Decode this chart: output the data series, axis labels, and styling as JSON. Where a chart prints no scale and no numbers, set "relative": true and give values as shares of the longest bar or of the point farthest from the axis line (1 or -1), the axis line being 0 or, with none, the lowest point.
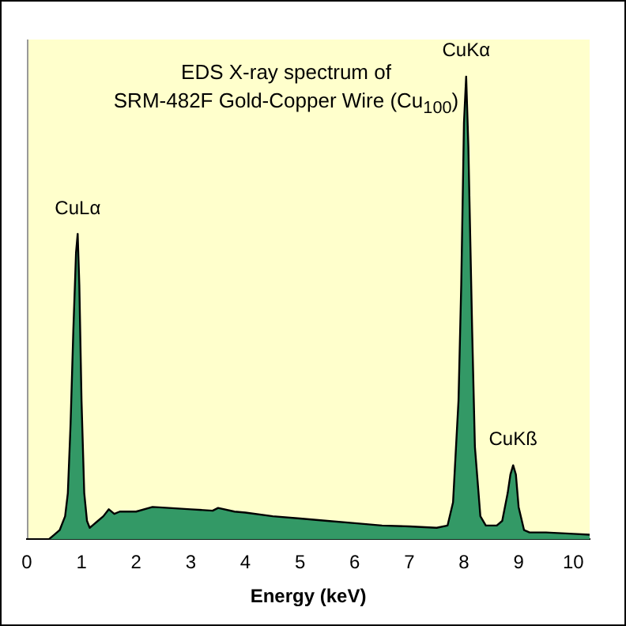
{
  "chart_data": {
    "type": "area",
    "title": "EDS X-ray spectrum of\nSRM-482F Gold-Copper Wire (Cu$_{100}$)",
    "xlabel": "Energy (keV)",
    "relative": true,
    "xlim": [
      0,
      10.3
    ],
    "xticks": [
      0,
      1,
      2,
      3,
      4,
      5,
      6,
      7,
      8,
      9,
      10
    ],
    "grid": false,
    "legend": false,
    "marker": "none",
    "x": [
      0,
      0.4,
      0.5,
      0.6,
      0.7,
      0.75,
      0.8,
      0.85,
      0.9,
      0.93,
      0.96,
      1.0,
      1.05,
      1.1,
      1.15,
      1.2,
      1.3,
      1.4,
      1.5,
      1.6,
      1.7,
      2.0,
      2.3,
      2.6,
      3.0,
      3.4,
      3.5,
      3.8,
      4.0,
      4.5,
      5.0,
      5.5,
      6.0,
      6.5,
      7.0,
      7.5,
      7.7,
      7.8,
      7.9,
      7.95,
      8.0,
      8.04,
      8.08,
      8.15,
      8.2,
      8.3,
      8.4,
      8.6,
      8.7,
      8.8,
      8.85,
      8.9,
      8.95,
      9.0,
      9.1,
      9.2,
      9.5,
      10.0,
      10.3
    ],
    "series": [
      {
        "color": "#339966",
        "values": [
          0,
          0,
          0.01,
          0.02,
          0.05,
          0.1,
          0.25,
          0.45,
          0.62,
          0.66,
          0.55,
          0.3,
          0.1,
          0.04,
          0.025,
          0.03,
          0.04,
          0.05,
          0.065,
          0.055,
          0.06,
          0.06,
          0.07,
          0.068,
          0.065,
          0.062,
          0.068,
          0.06,
          0.058,
          0.05,
          0.045,
          0.04,
          0.035,
          0.03,
          0.028,
          0.025,
          0.03,
          0.08,
          0.3,
          0.55,
          0.9,
          1.0,
          0.85,
          0.45,
          0.2,
          0.05,
          0.03,
          0.03,
          0.04,
          0.1,
          0.14,
          0.16,
          0.14,
          0.07,
          0.02,
          0.015,
          0.015,
          0.012,
          0.01
        ]
      }
    ],
    "annotations": [
      {
        "text": "CuLα",
        "x": 0.93,
        "y": 0.66
      },
      {
        "text": "CuKα",
        "x": 8.04,
        "y": 1.0
      },
      {
        "text": "CuKß",
        "x": 8.9,
        "y": 0.16
      }
    ]
  }
}
